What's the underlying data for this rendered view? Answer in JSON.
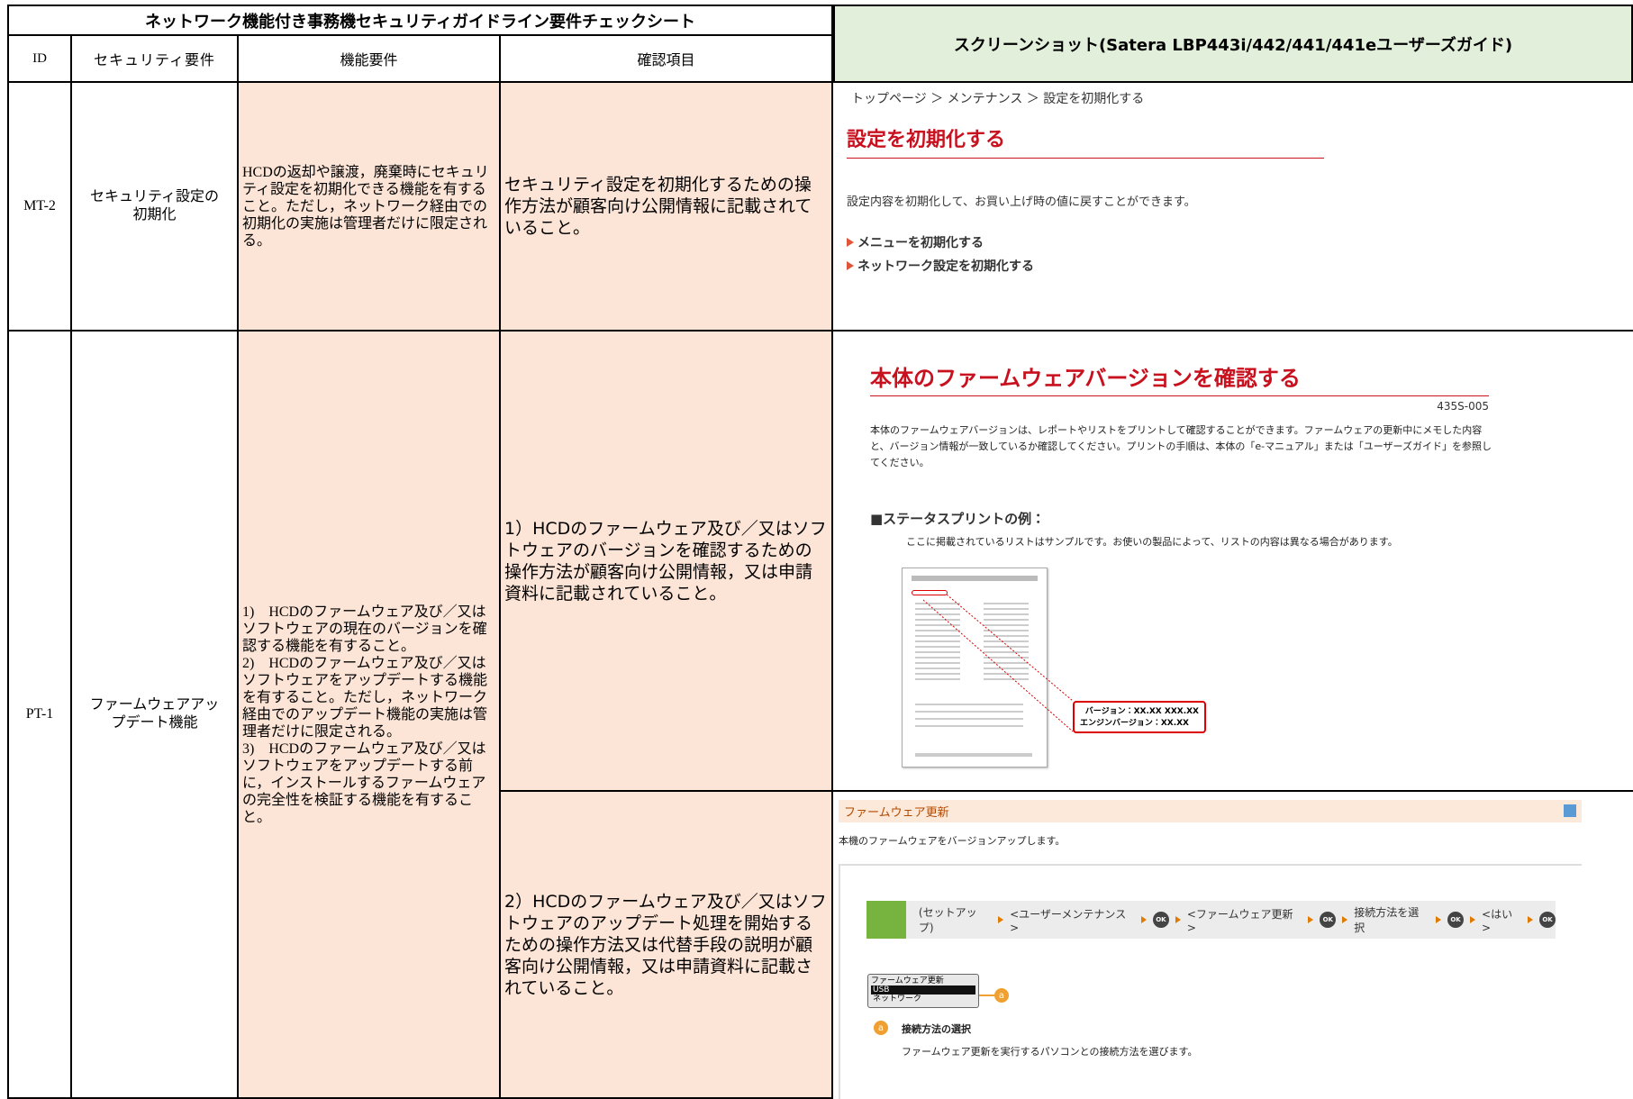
{
  "header": {
    "title": "ネットワーク機能付き事務機セキュリティガイドライン要件チェックシート",
    "screenshot_title": "スクリーンショット(Satera LBP443i/442/441/441eユーザーズガイド)"
  },
  "columns": [
    "ID",
    "セキュリティ要件",
    "機能要件",
    "確認項目"
  ],
  "rows": [
    {
      "id": "MT-2",
      "requirement": "セキュリティ設定の\n初期化",
      "function": "HCDの返却や譲渡，廃棄時にセキュリティ設定を初期化できる機能を有すること。ただし，ネットワーク経由での初期化の実施は管理者だけに限定される。",
      "checks": [
        "セキュリティ設定を初期化するための操作方法が顧客向け公開情報に記載されていること。"
      ]
    },
    {
      "id": "PT-1",
      "requirement": "ファームウェアアップデート機能",
      "function": "1)　HCDのファームウェア及び／又はソフトウェアの現在のバージョンを確認する機能を有すること。\n2)　HCDのファームウェア及び／又はソフトウェアをアップデートする機能を有すること。ただし，ネットワーク経由でのアップデート機能の実施は管理者だけに限定される。\n3)　HCDのファームウェア及び／又はソフトウェアをアップデートする前に，インストールするファームウェアの完全性を検証する機能を有すること。",
      "checks": [
        "1）HCDのファームウェア及び／又はソフトウェアのバージョンを確認するための操作方法が顧客向け公開情報，又は申請資料に記載されていること。",
        "2）HCDのファームウェア及び／又はソフトウェアのアップデート処理を開始するための操作方法又は代替手段の説明が顧客向け公開情報，又は申請資料に記載されていること。"
      ]
    }
  ],
  "screenshots": {
    "reset": {
      "breadcrumb": "トップページ ＞ メンテナンス ＞ 設定を初期化する",
      "title": "設定を初期化する",
      "description": "設定内容を初期化して、お買い上げ時の値に戻すことができます。",
      "links": [
        "メニューを初期化する",
        "ネットワーク設定を初期化する"
      ]
    },
    "version": {
      "title": "本体のファームウェアバージョンを確認する",
      "code": "435S-005",
      "description": "本体のファームウェアバージョンは、レポートやリストをプリントして確認することができます。ファームウェアの更新中にメモした内容と、バージョン情報が一致しているか確認してください。プリントの手順は、本体の「e-マニュアル」または「ユーザーズガイド」を参照してください。",
      "section": "■ステータスプリントの例：",
      "note": "ここに掲載されているリストはサンプルです。お使いの製品によって、リストの内容は異なる場合があります。",
      "callout": [
        "バージョン：XX.XX XXX.XX",
        "エンジンバージョン：XX.XX"
      ]
    },
    "update": {
      "title": "ファームウェア更新",
      "description": "本機のファームウェアをバージョンアップします。",
      "steps": [
        "(セットアップ)",
        "<ユーザーメンテナンス>",
        "OK",
        "<ファームウェア更新>",
        "OK",
        "接続方法を選択",
        "OK",
        "<はい>",
        "OK"
      ],
      "panel": [
        "ファームウェア更新",
        "USB",
        "ネットワーク"
      ],
      "marker": "a",
      "item_title": "接続方法の選択",
      "item_text": "ファームウェア更新を実行するパソコンとの接続方法を選びます。"
    }
  }
}
